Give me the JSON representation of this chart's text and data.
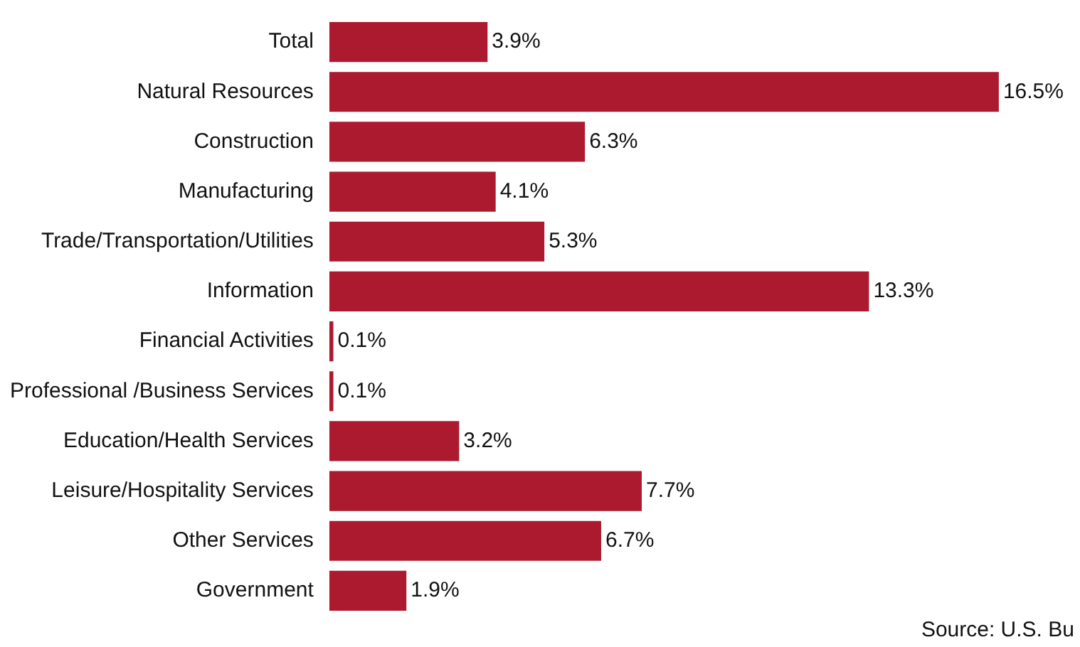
{
  "chart_data": {
    "type": "bar",
    "orientation": "horizontal",
    "tick_labels": "y",
    "legend": false,
    "categories": [
      "Total",
      "Natural Resources",
      "Construction",
      "Manufacturing",
      "Trade/Transportation/Utilities",
      "Information",
      "Financial Activities",
      "Professional /Business Services",
      "Education/Health Services",
      "Leisure/Hospitality Services",
      "Other Services",
      "Government"
    ],
    "values": [
      3.9,
      16.5,
      6.3,
      4.1,
      5.3,
      13.3,
      0.1,
      0.1,
      3.2,
      7.7,
      6.7,
      1.9
    ],
    "value_labels": [
      "3.9%",
      "16.5%",
      "6.3%",
      "4.1%",
      "5.3%",
      "13.3%",
      "0.1%",
      "0.1%",
      "3.2%",
      "7.7%",
      "6.7%",
      "1.9%"
    ],
    "color": "#ac1a2f",
    "annotations": [
      "Source: U.S. Bu"
    ]
  }
}
